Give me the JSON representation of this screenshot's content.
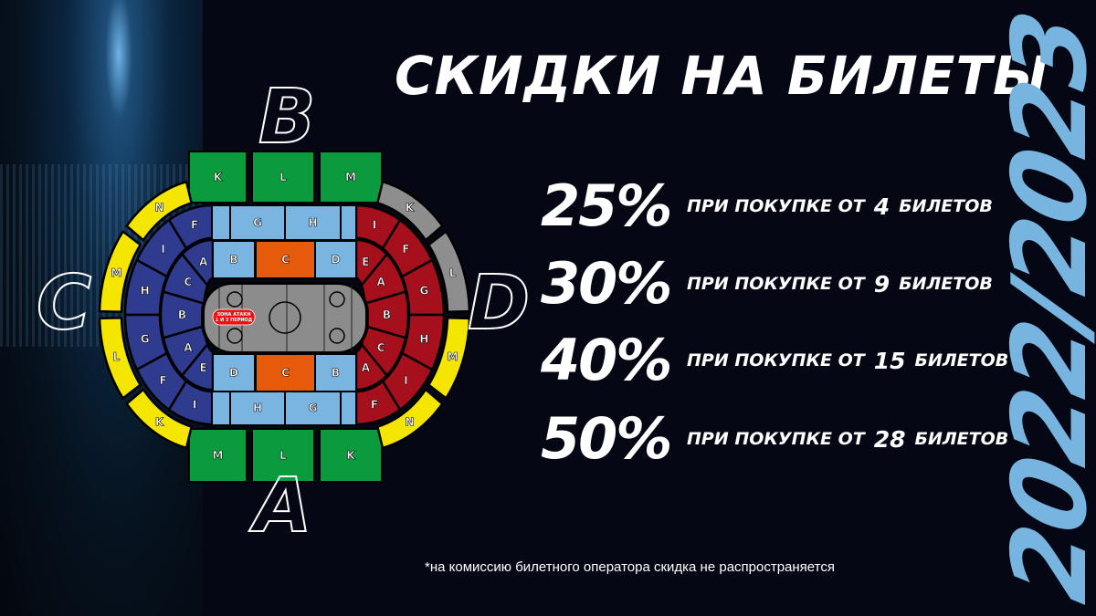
{
  "title": "СКИДКИ НА БИЛЕТЫ",
  "season": "2022/2023",
  "discounts": [
    {
      "percent": "25%",
      "prefix": "ПРИ ПОКУПКЕ ОТ",
      "count": "4",
      "suffix": "БИЛЕТОВ"
    },
    {
      "percent": "30%",
      "prefix": "ПРИ ПОКУПКЕ ОТ",
      "count": "9",
      "suffix": "БИЛЕТОВ"
    },
    {
      "percent": "40%",
      "prefix": "ПРИ ПОКУПКЕ ОТ",
      "count": "15",
      "suffix": "БИЛЕТОВ"
    },
    {
      "percent": "50%",
      "prefix": "ПРИ ПОКУПКЕ ОТ",
      "count": "28",
      "suffix": "БИЛЕТОВ"
    }
  ],
  "footnote": "*на комиссию билетного оператора скидка не распространяется",
  "arena": {
    "sides": {
      "top": "B",
      "left": "C",
      "right": "D",
      "bottom": "A"
    },
    "rink_label": [
      "ЗОНА АТАКИ",
      "1 И 3 ПЕРИОД"
    ],
    "top_outer": [
      "K",
      "L",
      "M"
    ],
    "bottom_outer": [
      "M",
      "L",
      "K"
    ],
    "top_middle": [
      "G",
      "H"
    ],
    "bottom_middle": [
      "H",
      "G"
    ],
    "top_inner": [
      "B",
      "C",
      "D"
    ],
    "bottom_inner": [
      "D",
      "C",
      "B"
    ],
    "left_inner": [
      "A",
      "C",
      "B",
      "A",
      "E"
    ],
    "left_middle": [
      "F",
      "I",
      "H",
      "G",
      "F",
      "I"
    ],
    "left_outer": [
      "N",
      "M",
      "L",
      "K"
    ],
    "right_inner": [
      "E",
      "A",
      "B",
      "C",
      "A"
    ],
    "right_middle": [
      "I",
      "F",
      "G",
      "H",
      "I",
      "F"
    ],
    "right_outer": [
      "K",
      "L",
      "M",
      "N"
    ],
    "colors": {
      "green": "#0b9a3c",
      "light_blue": "#7ab4e0",
      "orange": "#e65a0c",
      "dark_blue": "#2f3b8e",
      "red": "#a5101c",
      "yellow": "#f4e600",
      "gray": "#8e8e8e",
      "rink": "#8c8c8c",
      "season": "#78b4e0"
    }
  }
}
